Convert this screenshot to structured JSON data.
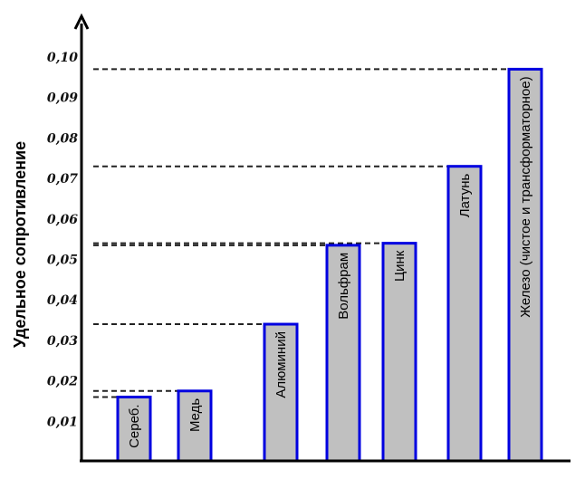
{
  "chart_data": {
    "type": "bar",
    "ylabel": "Удельное сопротивление",
    "xlabel": "",
    "title": "",
    "ylim": [
      0,
      0.105
    ],
    "y_ticks": [
      "0,01",
      "0,02",
      "0,03",
      "0,04",
      "0,05",
      "0,06",
      "0,07",
      "0,08",
      "0,09",
      "0,10"
    ],
    "categories": [
      "Сереб.",
      "Медь",
      "Алюминий",
      "Вольфрам",
      "Цинк",
      "Латунь",
      "Железо (чистое и трансформаторное)"
    ],
    "values": [
      0.016,
      0.0175,
      0.034,
      0.0535,
      0.054,
      0.073,
      0.097
    ],
    "colors": {
      "bar_fill": "#c0c0c0",
      "bar_stroke": "#0000e0",
      "axis": "#000000",
      "guide": "#222222"
    },
    "grid": false
  }
}
